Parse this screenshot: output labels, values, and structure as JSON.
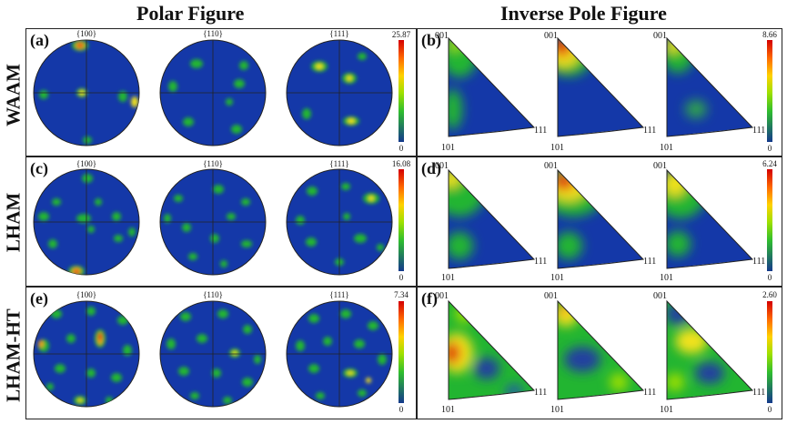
{
  "headers": {
    "polar": "Polar Figure",
    "inverse": "Inverse Pole Figure"
  },
  "pole_families": [
    "{100}",
    "{110}",
    "{111}"
  ],
  "ipf_corners": {
    "top": "001",
    "left": "101",
    "right": "111"
  },
  "colorbar_min": "0",
  "rows": [
    {
      "label": "WAAM",
      "pf_panel": "(a)",
      "ipf_panel": "(b)",
      "pf_max": "25.87",
      "ipf_max": "8.66"
    },
    {
      "label": "LHAM",
      "pf_panel": "(c)",
      "ipf_panel": "(d)",
      "pf_max": "16.08",
      "ipf_max": "6.24"
    },
    {
      "label": "LHAM-HT",
      "pf_panel": "(e)",
      "ipf_panel": "(f)",
      "pf_max": "7.34",
      "ipf_max": "2.60"
    }
  ],
  "colors": {
    "blue": "#1438a8",
    "green": "#22b531",
    "yellow": "#f2e21a",
    "red": "#e01010"
  }
}
